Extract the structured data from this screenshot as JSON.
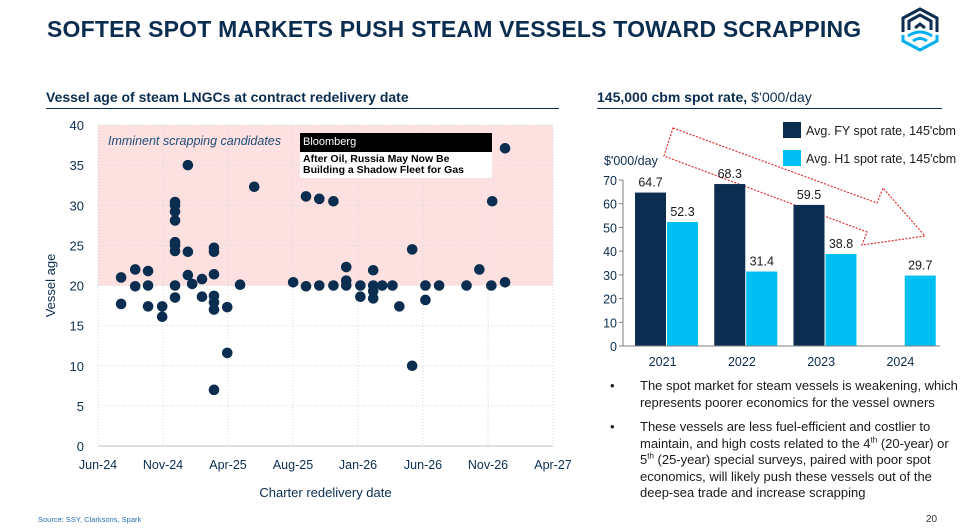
{
  "title": "SOFTER SPOT MARKETS PUSH STEAM VESSELS TOWARD SCRAPPING",
  "source": "Source: SSY, Clarksons, Spark",
  "page_number": "20",
  "logo": {
    "icon": "hexagon-chevrons-waves-logo",
    "colors": [
      "#0b2d4f",
      "#00b0f0"
    ]
  },
  "left_panel": {
    "heading": "Vessel age of steam LNGCs at contract redelivery date"
  },
  "right_panel": {
    "heading": "145,000 cbm spot rate,",
    "heading_unit": "$’000/day"
  },
  "news_clip": {
    "source": "Bloomberg",
    "headline": "After Oil, Russia May Now Be Building a Shadow Fleet for Gas"
  },
  "bullets": [
    {
      "segments": [
        {
          "text": "The spot market for steam vessels is weakening, which represents poorer economics for the vessel owners"
        }
      ]
    },
    {
      "segments": [
        {
          "text": "These vessels are less fuel-efficient and costlier to maintain, and high costs related to the 4"
        },
        {
          "text": "th",
          "sup": true
        },
        {
          "text": " (20-year) or 5"
        },
        {
          "text": "th",
          "sup": true
        },
        {
          "text": " (25-year) special surveys, paired with poor spot economics, will likely push these vessels out of the deep-sea trade and increase scrapping"
        }
      ]
    }
  ],
  "chart_data": [
    {
      "type": "scatter",
      "title": "Vessel age of steam LNGCs at contract redelivery date",
      "xlabel": "Charter redelivery date",
      "ylabel": "Vessel age",
      "xlim": [
        "2024-06-01",
        "2027-04-30"
      ],
      "ylim": [
        0,
        40
      ],
      "x_tick_labels": [
        "Jun-24",
        "Nov-24",
        "Apr-25",
        "Aug-25",
        "Jan-26",
        "Jun-26",
        "Nov-26",
        "Apr-27"
      ],
      "y_ticks": [
        0,
        5,
        10,
        15,
        20,
        25,
        30,
        35,
        40
      ],
      "grid": true,
      "shaded_region": {
        "y_from": 20,
        "y_to": 40,
        "label": "Imminent scrapping candidates",
        "color": "#fde0e0"
      },
      "marker_color": "#0b2d4f",
      "points": [
        [
          "2024-07-25",
          21.0
        ],
        [
          "2024-07-25",
          17.7
        ],
        [
          "2024-08-27",
          22.0
        ],
        [
          "2024-08-27",
          19.9
        ],
        [
          "2024-09-26",
          21.8
        ],
        [
          "2024-09-26",
          20.0
        ],
        [
          "2024-09-26",
          17.4
        ],
        [
          "2024-10-29",
          17.4
        ],
        [
          "2024-10-29",
          16.1
        ],
        [
          "2024-11-28",
          30.4
        ],
        [
          "2024-11-28",
          30.0
        ],
        [
          "2024-11-28",
          29.2
        ],
        [
          "2024-11-28",
          28.1
        ],
        [
          "2024-11-28",
          25.4
        ],
        [
          "2024-11-28",
          25.0
        ],
        [
          "2024-11-28",
          24.3
        ],
        [
          "2024-11-28",
          20.0
        ],
        [
          "2024-11-28",
          18.5
        ],
        [
          "2024-12-28",
          35.0
        ],
        [
          "2024-12-28",
          24.2
        ],
        [
          "2024-12-28",
          21.3
        ],
        [
          "2025-01-07",
          20.2
        ],
        [
          "2025-01-30",
          20.8
        ],
        [
          "2025-01-30",
          18.6
        ],
        [
          "2025-02-27",
          24.7
        ],
        [
          "2025-02-27",
          24.2
        ],
        [
          "2025-02-27",
          21.4
        ],
        [
          "2025-02-27",
          18.7
        ],
        [
          "2025-02-27",
          17.9
        ],
        [
          "2025-02-27",
          17.0
        ],
        [
          "2025-02-27",
          7.0
        ],
        [
          "2025-03-30",
          17.3
        ],
        [
          "2025-03-30",
          11.6
        ],
        [
          "2025-04-29",
          20.1
        ],
        [
          "2025-06-01",
          32.3
        ],
        [
          "2025-08-31",
          20.4
        ],
        [
          "2025-09-30",
          31.1
        ],
        [
          "2025-09-30",
          19.9
        ],
        [
          "2025-10-31",
          30.8
        ],
        [
          "2025-10-31",
          20.0
        ],
        [
          "2025-12-03",
          30.5
        ],
        [
          "2025-12-03",
          20.0
        ],
        [
          "2026-01-02",
          22.3
        ],
        [
          "2026-01-02",
          20.6
        ],
        [
          "2026-01-02",
          20.0
        ],
        [
          "2026-02-04",
          20.0
        ],
        [
          "2026-02-04",
          18.6
        ],
        [
          "2026-03-06",
          21.9
        ],
        [
          "2026-03-06",
          20.0
        ],
        [
          "2026-03-06",
          19.3
        ],
        [
          "2026-03-06",
          18.4
        ],
        [
          "2026-03-27",
          20.0
        ],
        [
          "2026-04-20",
          20.0
        ],
        [
          "2026-05-06",
          17.4
        ],
        [
          "2026-06-05",
          24.5
        ],
        [
          "2026-06-05",
          10.0
        ],
        [
          "2026-07-06",
          20.0
        ],
        [
          "2026-07-06",
          18.2
        ],
        [
          "2026-08-07",
          20.0
        ],
        [
          "2026-10-10",
          20.0
        ],
        [
          "2026-11-09",
          22.0
        ],
        [
          "2026-12-07",
          20.0
        ],
        [
          "2026-12-09",
          30.5
        ],
        [
          "2027-01-08",
          37.1
        ],
        [
          "2027-01-08",
          20.4
        ]
      ]
    },
    {
      "type": "bar",
      "title": "145,000 cbm spot rate, $’000/day",
      "ylabel": "$'000/day",
      "categories": [
        "2021",
        "2022",
        "2023",
        "2024"
      ],
      "ylim": [
        0,
        70
      ],
      "y_ticks": [
        0,
        10,
        20,
        30,
        40,
        50,
        60,
        70
      ],
      "grid": false,
      "legend_position": "top-right",
      "series": [
        {
          "name": "Avg. FY spot rate, 145'cbm",
          "color": "#0b2d4f",
          "values": [
            64.7,
            68.3,
            59.5,
            null
          ],
          "labels": [
            "64.7",
            "68.3",
            "59.5",
            ""
          ]
        },
        {
          "name": "Avg. H1 spot rate, 145'cbm",
          "color": "#00bff3",
          "values": [
            52.3,
            31.4,
            38.8,
            29.7
          ],
          "labels": [
            "52.3",
            "31.4",
            "38.8",
            "29.7"
          ]
        }
      ],
      "annotation": {
        "type": "downward-trend-arrow",
        "style": "red dashed outline",
        "color": "#e03030"
      }
    }
  ]
}
